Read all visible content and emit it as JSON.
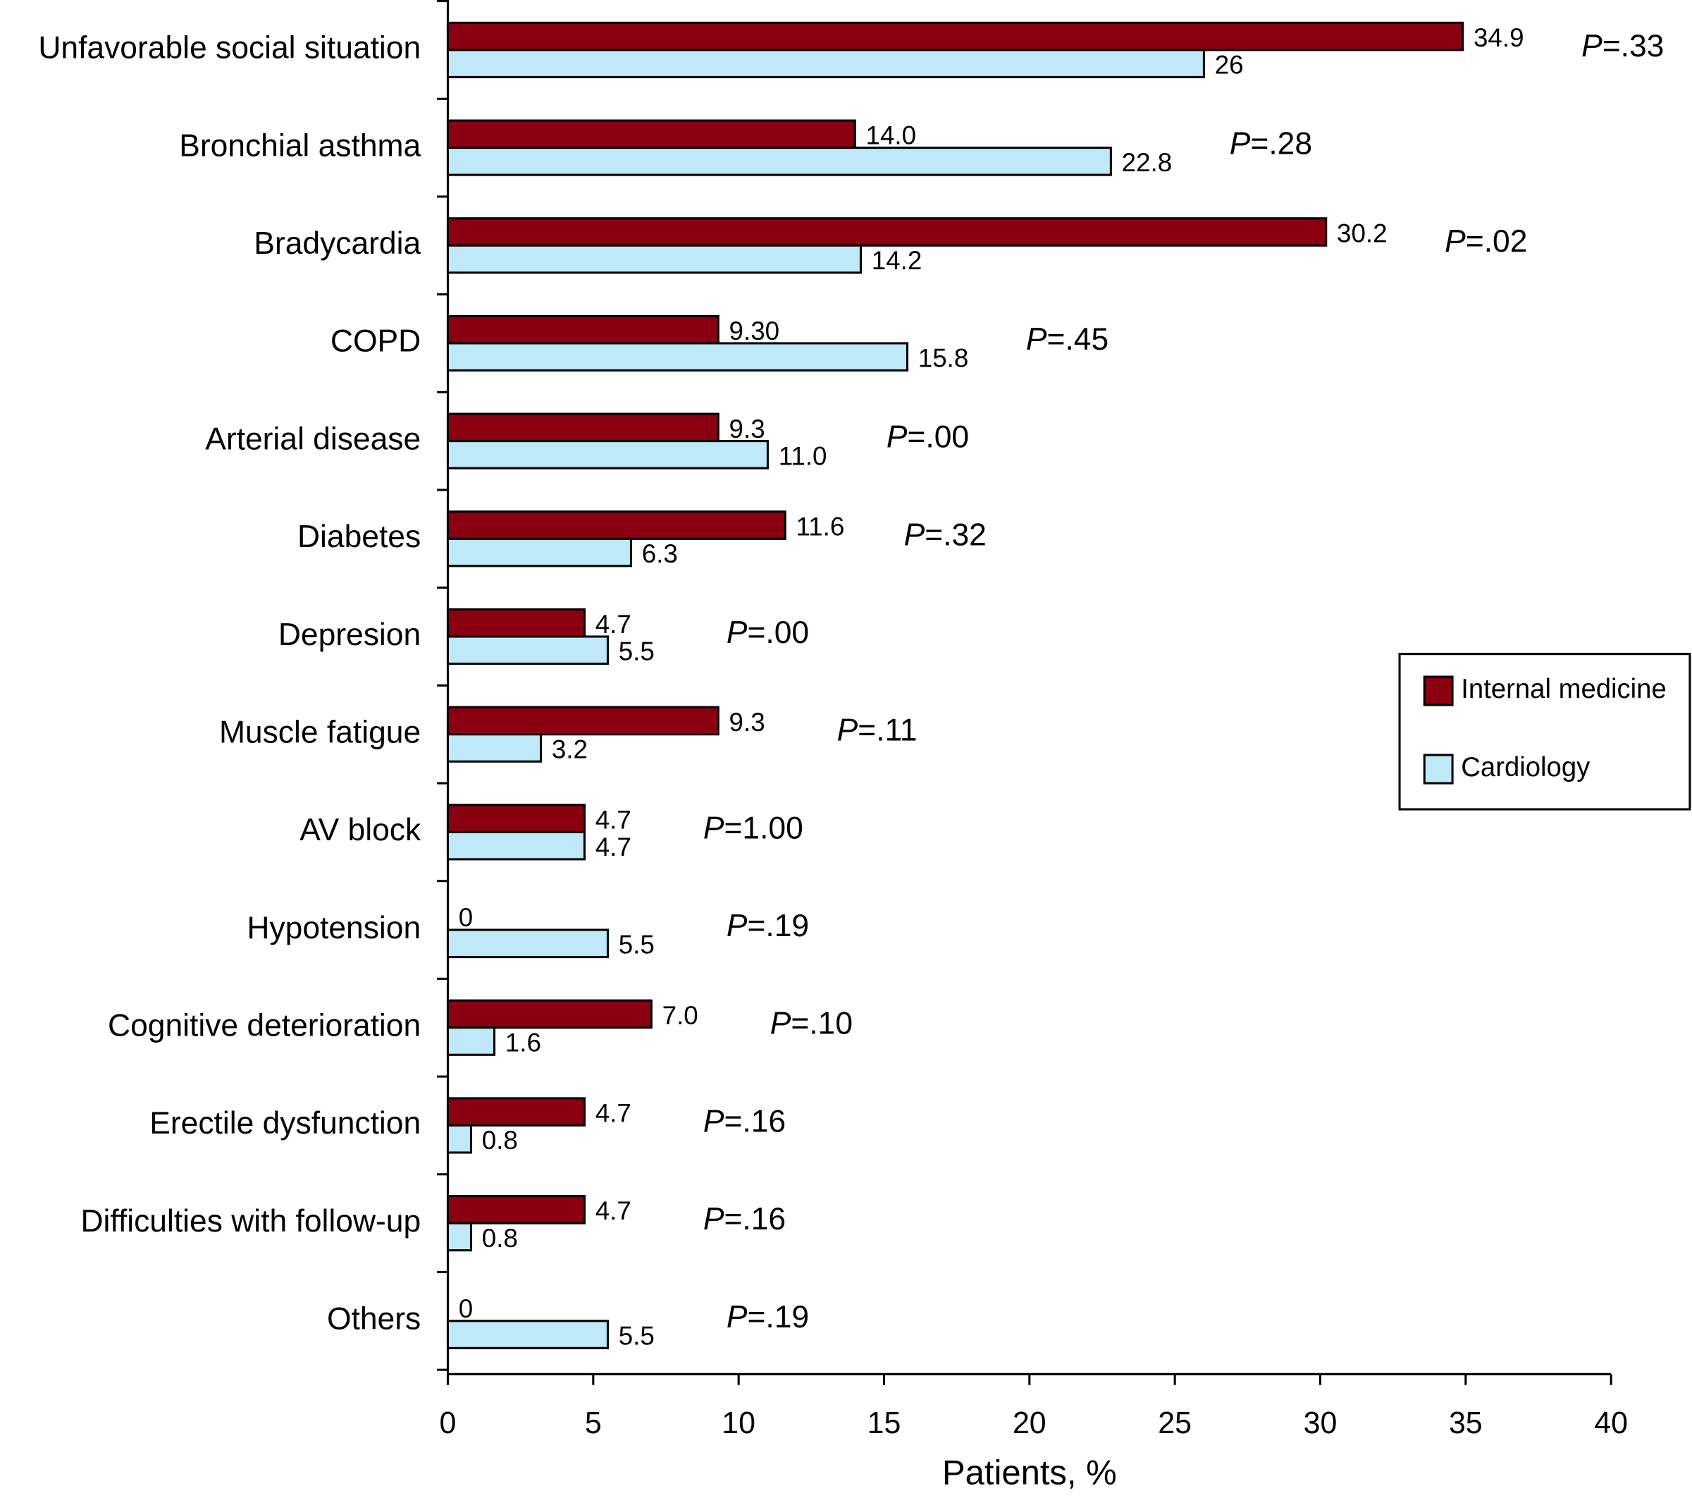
{
  "chart_data": {
    "type": "hbar",
    "categories": [
      "Unfavorable social situation",
      "Bronchial asthma",
      "Bradycardia",
      "COPD",
      "Arterial disease",
      "Diabetes",
      "Depresion",
      "Muscle fatigue",
      "AV block",
      "Hypotension",
      "Cognitive deterioration",
      "Erectile dysfunction",
      "Difficulties with follow-up",
      "Others"
    ],
    "series": [
      {
        "name": "Internal medicine",
        "color": "#8b0010",
        "values": [
          34.9,
          14.0,
          30.2,
          9.3,
          9.3,
          11.6,
          4.7,
          9.3,
          4.7,
          0,
          7.0,
          4.7,
          4.7,
          0
        ],
        "value_labels": [
          "34.9",
          "14.0",
          "30.2",
          "9.30",
          "9.3",
          "11.6",
          "4.7",
          "9.3",
          "4.7",
          "0",
          "7.0",
          "4.7",
          "4.7",
          "0"
        ]
      },
      {
        "name": "Cardiology",
        "color": "#bfe8f9",
        "values": [
          26,
          22.8,
          14.2,
          15.8,
          11.0,
          6.3,
          5.5,
          3.2,
          4.7,
          5.5,
          1.6,
          0.8,
          0.8,
          5.5
        ],
        "value_labels": [
          "26",
          "22.8",
          "14.2",
          "15.8",
          "11.0",
          "6.3",
          "5.5",
          "3.2",
          "4.7",
          "5.5",
          "1.6",
          "0.8",
          "0.8",
          "5.5"
        ]
      }
    ],
    "p_values": [
      "P=.33",
      "P=.28",
      "P=.02",
      "P=.45",
      "P=.00",
      "P=.32",
      "P=.00",
      "P=.11",
      "P=1.00",
      "P=.19",
      "P=.10",
      "P=.16",
      "P=.16",
      "P=.19"
    ],
    "xlabel": "Patients, %",
    "xlim": [
      0,
      40
    ],
    "xticks": [
      0,
      5,
      10,
      15,
      20,
      25,
      30,
      35,
      40
    ],
    "legend": "right"
  }
}
